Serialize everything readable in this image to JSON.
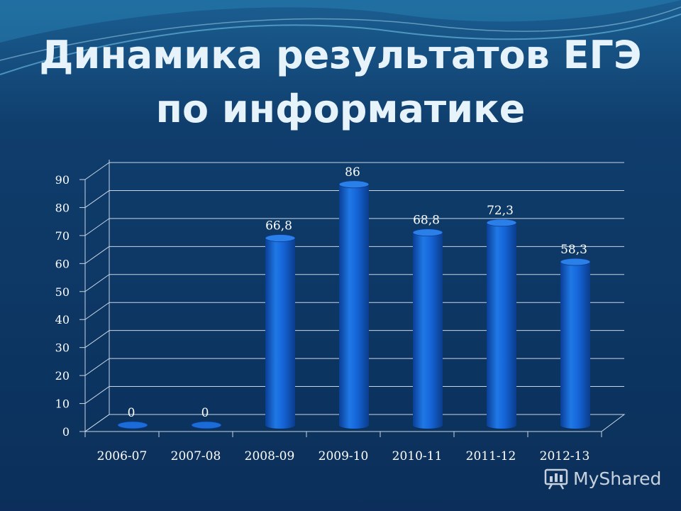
{
  "title": {
    "line1": "Динамика результатов ЕГЭ",
    "line2": "по информатике"
  },
  "watermark": {
    "text": "MyShared",
    "icon": "presentation-screen-icon"
  },
  "colors": {
    "background": "#0c3360",
    "bar": "#1565d8",
    "grid": "#c8d6e6",
    "text": "#ffffff"
  },
  "chart_data": {
    "type": "bar",
    "categories": [
      "2006-07",
      "2007-08",
      "2008-09",
      "2009-10",
      "2010-11",
      "2011-12",
      "2012-13"
    ],
    "values": [
      0,
      0,
      66.8,
      86,
      68.8,
      72.3,
      58.3
    ],
    "data_labels": [
      "0",
      "0",
      "66,8",
      "86",
      "68,8",
      "72,3",
      "58,3"
    ],
    "title": "",
    "xlabel": "",
    "ylabel": "",
    "ylim": [
      0,
      90
    ],
    "yticks": [
      0,
      10,
      20,
      30,
      40,
      50,
      60,
      70,
      80,
      90
    ],
    "grid": true,
    "legend": "none",
    "style": "3d-cylinder"
  }
}
